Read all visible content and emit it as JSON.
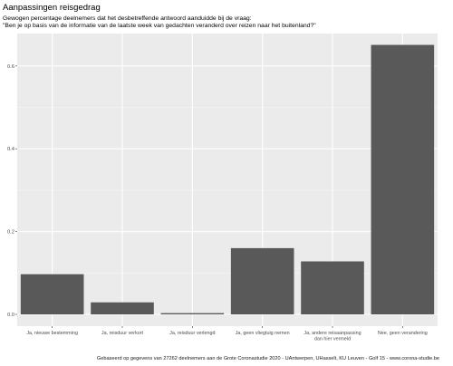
{
  "chart_data": {
    "type": "bar",
    "title": "Aanpassingen reisgedrag",
    "subtitle_lines": [
      "Gewogen percentage deelnemers dat het desbetreffende antwoord aanduidde bij de vraag:",
      "\"Ben je op basis van de informatie van de laatste week van gedachten veranderd over reizen naar het buitenland?\""
    ],
    "ylabel": "",
    "ylim": [
      0,
      0.7
    ],
    "yticks": [
      {
        "value": 0.0,
        "label": "0.0"
      },
      {
        "value": 0.2,
        "label": "0.2"
      },
      {
        "value": 0.4,
        "label": "0.4"
      },
      {
        "value": 0.6,
        "label": "0.6"
      }
    ],
    "categories": [
      [
        "Ja, nieuwe bestemming"
      ],
      [
        "Ja, reisduur verkort"
      ],
      [
        "Ja, reisduur verlengd"
      ],
      [
        "Ja, geen vliegtuig nemen"
      ],
      [
        "Ja, andere reisaanpassing",
        "dan hier vermeld"
      ],
      [
        "Nee, geen verandering"
      ]
    ],
    "values": [
      0.097,
      0.029,
      0.003,
      0.16,
      0.128,
      0.651
    ],
    "bar_color": "#595959",
    "panel_color": "#ebebeb",
    "grid": true,
    "caption": "Gebaseerd op gegevens van 27262 deelnemers aan de Grote Coronastudie 2020 - UAntwerpen, UHasselt, KU Leuven - Golf 15 - www.corona-studie.be"
  }
}
